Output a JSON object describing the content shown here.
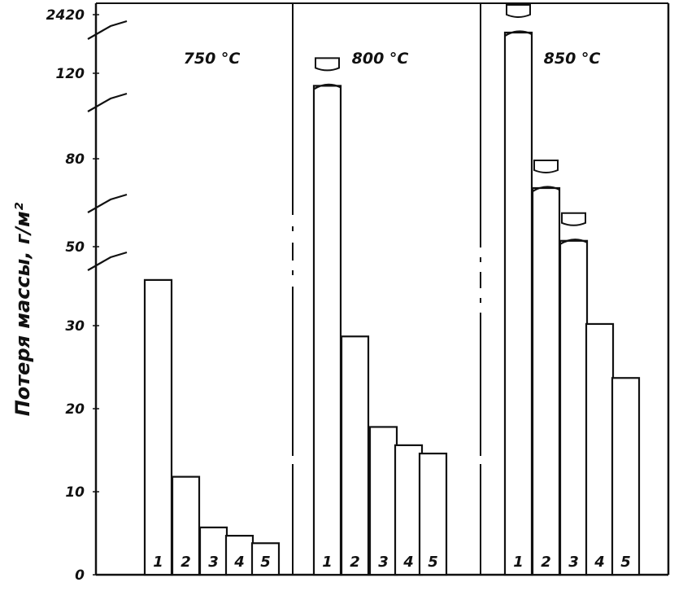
{
  "chart_data": {
    "type": "bar",
    "ylabel": "Потеря массы, г/м²",
    "y_tick_labels": [
      "0",
      "10",
      "20",
      "30",
      "50",
      "80",
      "120",
      "2420"
    ],
    "axis_break_between": [
      [
        "30",
        "50"
      ],
      [
        "50",
        "80"
      ],
      [
        "80",
        "120"
      ],
      [
        "120",
        "2420"
      ]
    ],
    "grid": false,
    "legend": "none",
    "color": "#111111",
    "groups": [
      {
        "label": "750 °C",
        "bars": [
          {
            "label": "1",
            "value": 35.5
          },
          {
            "label": "2",
            "value": 11.8
          },
          {
            "label": "3",
            "value": 5.7
          },
          {
            "label": "4",
            "value": 4.7
          },
          {
            "label": "5",
            "value": 3.8
          }
        ]
      },
      {
        "label": "800 °C",
        "bars": [
          {
            "label": "1",
            "value": 112,
            "broken": true
          },
          {
            "label": "2",
            "value": 28.7
          },
          {
            "label": "3",
            "value": 17.8
          },
          {
            "label": "4",
            "value": 15.6
          },
          {
            "label": "5",
            "value": 14.6
          }
        ]
      },
      {
        "label": "850 °C",
        "bars": [
          {
            "label": "1",
            "value": 140,
            "broken": true
          },
          {
            "label": "2",
            "value": 70,
            "broken": true
          },
          {
            "label": "3",
            "value": 52,
            "broken": true
          },
          {
            "label": "4",
            "value": 30.2
          },
          {
            "label": "5",
            "value": 23.7
          }
        ]
      }
    ]
  }
}
